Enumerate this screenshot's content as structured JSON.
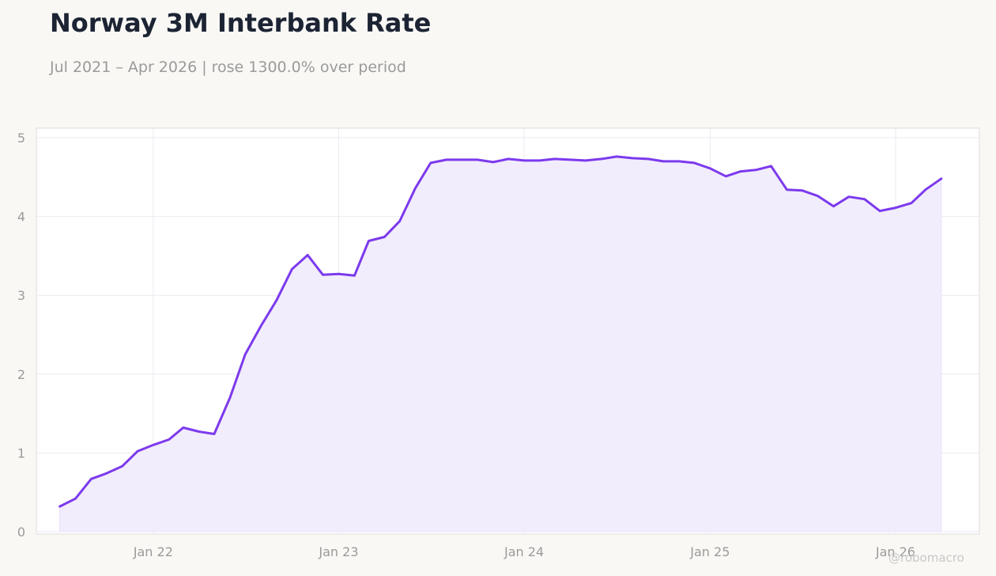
{
  "header": {
    "title": "Norway 3M Interbank Rate",
    "subtitle": "Jul 2021 – Apr 2026 | rose 1300.0% over period"
  },
  "watermark": "@robomacro",
  "colors": {
    "line": "#7c3aed",
    "fill": "#f2edfc",
    "grid": "#ece9f0",
    "background": "#f9f8f5",
    "plot_background": "#ffffff"
  },
  "chart_data": {
    "type": "area",
    "title": "Norway 3M Interbank Rate",
    "subtitle": "Jul 2021 – Apr 2026 | rose 1300.0% over period",
    "xlabel": "",
    "ylabel": "",
    "ylim": [
      0,
      5
    ],
    "yticks": [
      0,
      1,
      2,
      3,
      4,
      5
    ],
    "xlim": [
      "2021-05-16",
      "2026-06-15"
    ],
    "xticks": [
      {
        "date": "2022-01-01",
        "label": "Jan 22"
      },
      {
        "date": "2023-01-01",
        "label": "Jan 23"
      },
      {
        "date": "2024-01-01",
        "label": "Jan 24"
      },
      {
        "date": "2025-01-01",
        "label": "Jan 25"
      },
      {
        "date": "2026-01-01",
        "label": "Jan 26"
      }
    ],
    "grid": true,
    "legend": "none",
    "x": [
      "2021-07-01",
      "2021-08-01",
      "2021-09-01",
      "2021-10-01",
      "2021-11-01",
      "2021-12-01",
      "2022-01-01",
      "2022-02-01",
      "2022-03-01",
      "2022-04-01",
      "2022-05-01",
      "2022-06-01",
      "2022-07-01",
      "2022-08-01",
      "2022-09-01",
      "2022-10-01",
      "2022-11-01",
      "2022-12-01",
      "2023-01-01",
      "2023-02-01",
      "2023-03-01",
      "2023-04-01",
      "2023-05-01",
      "2023-06-01",
      "2023-07-01",
      "2023-08-01",
      "2023-09-01",
      "2023-10-01",
      "2023-11-01",
      "2023-12-01",
      "2024-01-01",
      "2024-02-01",
      "2024-03-01",
      "2024-04-01",
      "2024-05-01",
      "2024-06-01",
      "2024-07-01",
      "2024-08-01",
      "2024-09-01",
      "2024-10-01",
      "2024-11-01",
      "2024-12-01",
      "2025-01-01",
      "2025-02-01",
      "2025-03-01",
      "2025-04-01",
      "2025-05-01",
      "2025-06-01",
      "2025-07-01",
      "2025-08-01",
      "2025-09-01",
      "2025-10-01",
      "2025-11-01",
      "2025-12-01",
      "2026-01-01",
      "2026-02-01",
      "2026-03-01",
      "2026-04-01"
    ],
    "series": [
      {
        "values": [
          0.32,
          0.42,
          0.67,
          0.74,
          0.83,
          1.02,
          1.1,
          1.17,
          1.32,
          1.27,
          1.24,
          1.7,
          2.25,
          2.61,
          2.94,
          3.33,
          3.51,
          3.26,
          3.27,
          3.25,
          3.69,
          3.74,
          3.94,
          4.36,
          4.68,
          4.72,
          4.72,
          4.72,
          4.69,
          4.73,
          4.71,
          4.71,
          4.73,
          4.72,
          4.71,
          4.73,
          4.76,
          4.74,
          4.73,
          4.7,
          4.7,
          4.68,
          4.61,
          4.51,
          4.57,
          4.59,
          4.64,
          4.34,
          4.33,
          4.26,
          4.13,
          4.25,
          4.22,
          4.07,
          4.11,
          4.17,
          4.34,
          4.48
        ]
      }
    ]
  }
}
